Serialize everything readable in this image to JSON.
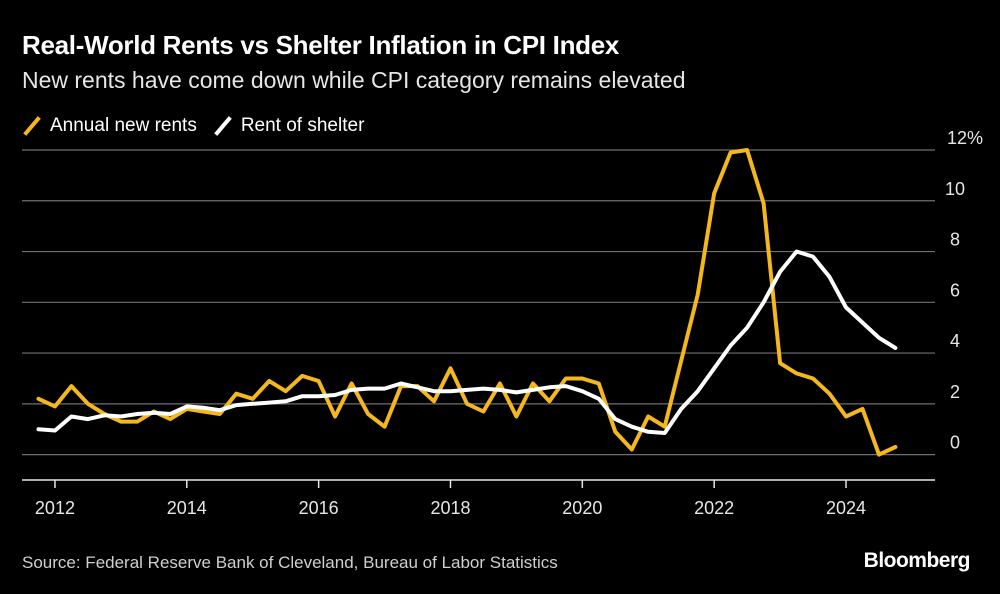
{
  "chart_data": {
    "type": "line",
    "title": "Real-World Rents vs Shelter Inflation in CPI Index",
    "subtitle": "New rents have come down while CPI category remains elevated",
    "xlabel": "",
    "ylabel": "",
    "xlim": [
      2011.5,
      2025.35
    ],
    "ylim": [
      -1,
      12
    ],
    "x_ticks": [
      2012,
      2014,
      2016,
      2018,
      2020,
      2022,
      2024
    ],
    "x_tick_labels": [
      "2012",
      "2014",
      "2016",
      "2018",
      "2020",
      "2022",
      "2024"
    ],
    "y_ticks": [
      0,
      2,
      4,
      6,
      8,
      10,
      12
    ],
    "y_tick_labels": [
      "0",
      "2",
      "4",
      "6",
      "8",
      "10",
      "12%"
    ],
    "grid": "horizontal",
    "legend_position": "top-left",
    "series": [
      {
        "name": "Annual new rents",
        "color": "#f5b81c",
        "x": [
          2011.75,
          2012.0,
          2012.25,
          2012.5,
          2012.75,
          2013.0,
          2013.25,
          2013.5,
          2013.75,
          2014.0,
          2014.25,
          2014.5,
          2014.75,
          2015.0,
          2015.25,
          2015.5,
          2015.75,
          2016.0,
          2016.25,
          2016.5,
          2016.75,
          2017.0,
          2017.25,
          2017.5,
          2017.75,
          2018.0,
          2018.25,
          2018.5,
          2018.75,
          2019.0,
          2019.25,
          2019.5,
          2019.75,
          2020.0,
          2020.25,
          2020.5,
          2020.75,
          2021.0,
          2021.25,
          2021.5,
          2021.75,
          2022.0,
          2022.25,
          2022.5,
          2022.75,
          2023.0,
          2023.25,
          2023.5,
          2023.75,
          2024.0,
          2024.25,
          2024.5,
          2024.75
        ],
        "values": [
          2.2,
          1.9,
          2.7,
          2.0,
          1.6,
          1.3,
          1.3,
          1.7,
          1.4,
          1.8,
          1.7,
          1.6,
          2.4,
          2.2,
          2.9,
          2.5,
          3.1,
          2.9,
          1.5,
          2.8,
          1.6,
          1.1,
          2.7,
          2.7,
          2.1,
          3.4,
          2.0,
          1.7,
          2.8,
          1.5,
          2.8,
          2.1,
          3.0,
          3.0,
          2.8,
          0.9,
          0.2,
          1.5,
          1.1,
          3.7,
          6.3,
          10.3,
          11.9,
          12.0,
          9.9,
          3.6,
          3.2,
          3.0,
          2.4,
          1.5,
          1.8,
          0.0,
          0.3
        ]
      },
      {
        "name": "Rent of shelter",
        "color": "#ffffff",
        "x": [
          2011.75,
          2012.0,
          2012.25,
          2012.5,
          2012.75,
          2013.0,
          2013.25,
          2013.5,
          2013.75,
          2014.0,
          2014.25,
          2014.5,
          2014.75,
          2015.0,
          2015.25,
          2015.5,
          2015.75,
          2016.0,
          2016.25,
          2016.5,
          2016.75,
          2017.0,
          2017.25,
          2017.5,
          2017.75,
          2018.0,
          2018.25,
          2018.5,
          2018.75,
          2019.0,
          2019.25,
          2019.5,
          2019.75,
          2020.0,
          2020.25,
          2020.5,
          2020.75,
          2021.0,
          2021.25,
          2021.5,
          2021.75,
          2022.0,
          2022.25,
          2022.5,
          2022.75,
          2023.0,
          2023.25,
          2023.5,
          2023.75,
          2024.0,
          2024.25,
          2024.5,
          2024.75
        ],
        "values": [
          1.0,
          0.95,
          1.5,
          1.4,
          1.55,
          1.5,
          1.6,
          1.65,
          1.6,
          1.9,
          1.85,
          1.75,
          1.95,
          2.0,
          2.05,
          2.1,
          2.3,
          2.3,
          2.35,
          2.55,
          2.6,
          2.6,
          2.8,
          2.65,
          2.5,
          2.5,
          2.55,
          2.6,
          2.55,
          2.45,
          2.55,
          2.65,
          2.7,
          2.5,
          2.2,
          1.4,
          1.1,
          0.9,
          0.85,
          1.8,
          2.5,
          3.4,
          4.3,
          5.0,
          6.0,
          7.2,
          8.0,
          7.8,
          7.0,
          5.8,
          5.2,
          4.6,
          4.2
        ]
      }
    ]
  },
  "legend": {
    "items": [
      {
        "label": "Annual new rents",
        "color": "#f5b81c"
      },
      {
        "label": "Rent of shelter",
        "color": "#ffffff"
      }
    ]
  },
  "footer": {
    "source": "Source: Federal Reserve Bank of Cleveland, Bureau of Labor Statistics",
    "logo": "Bloomberg"
  },
  "colors": {
    "background": "#000000",
    "grid": "#6f6f6f",
    "axis": "#e6e6e6"
  }
}
